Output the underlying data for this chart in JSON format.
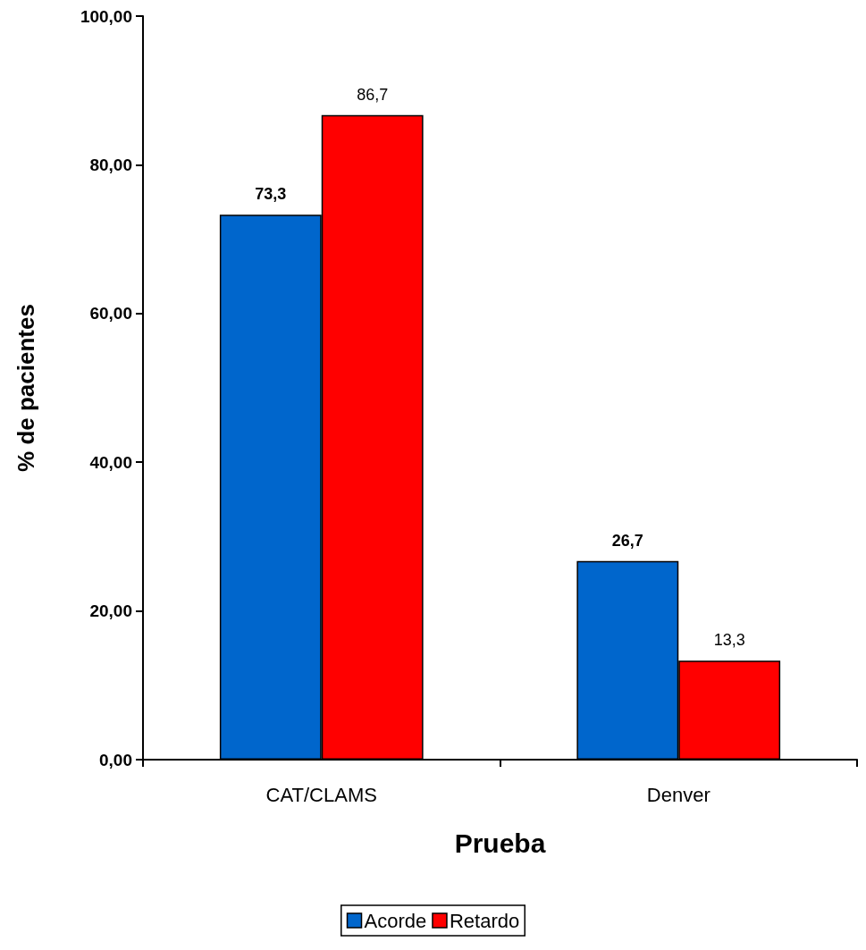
{
  "chart_data": {
    "type": "bar",
    "xlabel": "Prueba",
    "ylabel": "% de pacientes",
    "categories": [
      "CAT/CLAMS",
      "Denver"
    ],
    "series": [
      {
        "name": "Acorde",
        "color": "#0066cc",
        "values": [
          73.3,
          26.7
        ],
        "value_labels": [
          "73,3",
          "26,7"
        ]
      },
      {
        "name": "Retardo",
        "color": "#ff0000",
        "values": [
          86.7,
          13.3
        ],
        "value_labels": [
          "86,7",
          "13,3"
        ]
      }
    ],
    "ylim": [
      0,
      100
    ],
    "yticks": [
      {
        "value": 0,
        "label": "0,00"
      },
      {
        "value": 20,
        "label": "20,00"
      },
      {
        "value": 40,
        "label": "40,00"
      },
      {
        "value": 60,
        "label": "60,00"
      },
      {
        "value": 80,
        "label": "80,00"
      },
      {
        "value": 100,
        "label": "100,00"
      }
    ],
    "grid": false,
    "legend": "bottom"
  }
}
